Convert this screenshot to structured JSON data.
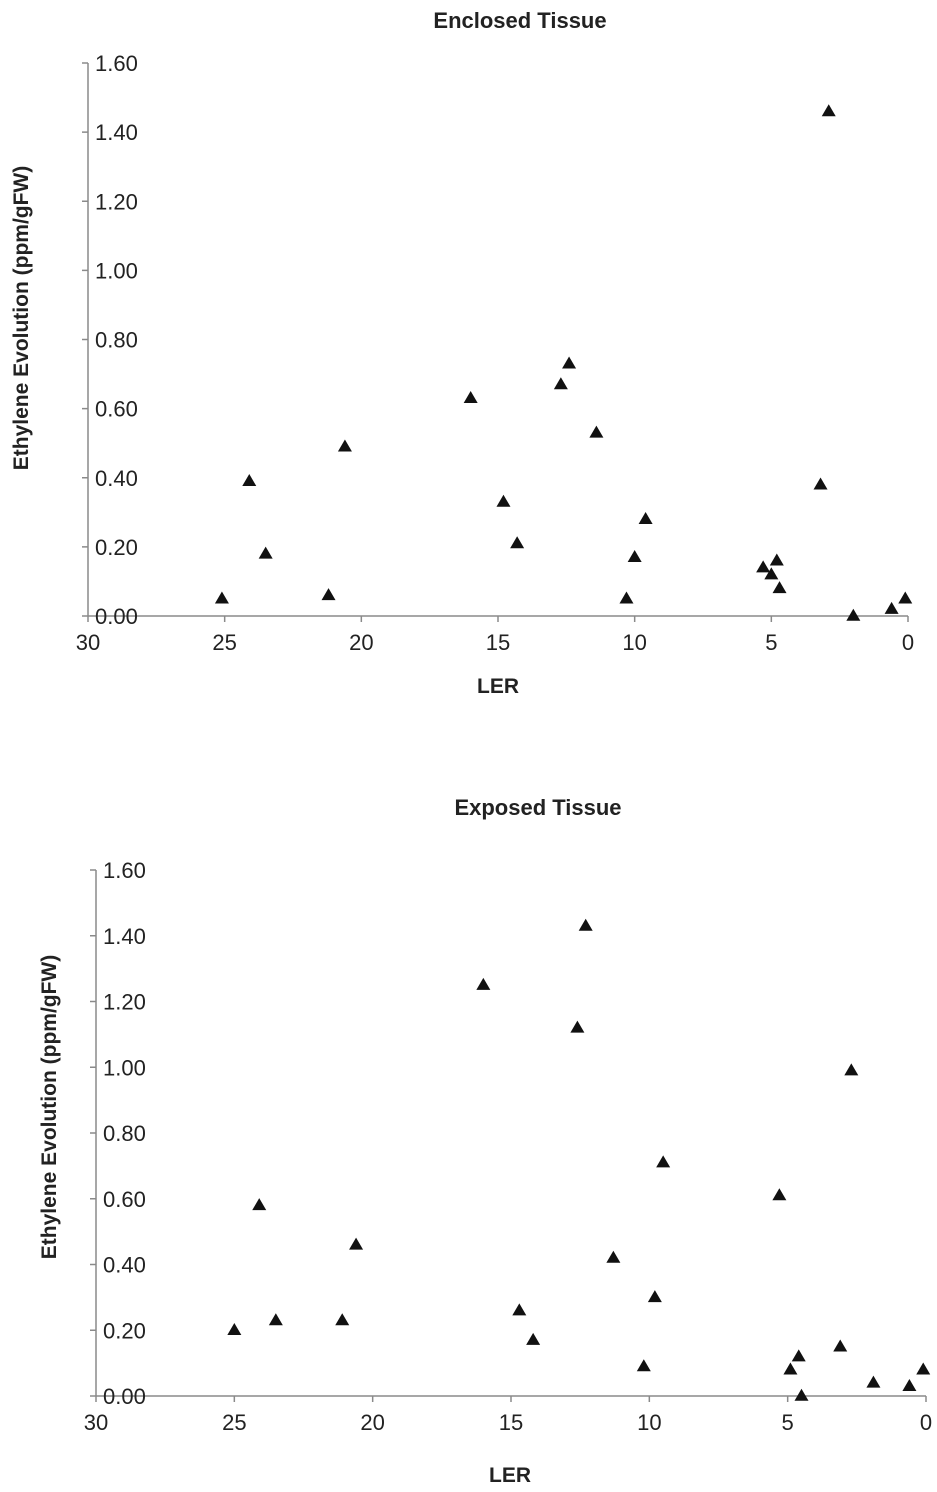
{
  "chart_data": [
    {
      "type": "scatter",
      "title": "Enclosed Tissue",
      "xlabel": "LER",
      "ylabel": "Ethylene Evolution (ppm/gFW)",
      "xlim": [
        30,
        0
      ],
      "ylim": [
        0,
        1.6
      ],
      "x_reversed": true,
      "xticks": [
        "30",
        "25",
        "20",
        "15",
        "10",
        "5",
        "0"
      ],
      "yticks": [
        "0.00",
        "0.20",
        "0.40",
        "0.60",
        "0.80",
        "1.00",
        "1.20",
        "1.40",
        "1.60"
      ],
      "grid": false,
      "marker": "triangle",
      "series": [
        {
          "x": [
            25.1,
            24.1,
            23.5,
            21.2,
            20.6,
            16.0,
            14.8,
            14.3,
            12.7,
            12.4,
            11.4,
            10.3,
            10.0,
            9.6,
            5.3,
            5.0,
            4.8,
            4.7,
            3.2,
            2.9,
            2.0,
            0.6,
            0.1
          ],
          "y": [
            0.05,
            0.39,
            0.18,
            0.06,
            0.49,
            0.63,
            0.33,
            0.21,
            0.67,
            0.73,
            0.53,
            0.05,
            0.17,
            0.28,
            0.14,
            0.12,
            0.16,
            0.08,
            0.38,
            1.46,
            0.0,
            0.02,
            0.05
          ]
        }
      ]
    },
    {
      "type": "scatter",
      "title": "Exposed Tissue",
      "xlabel": "LER",
      "ylabel": "Ethylene Evolution (ppm/gFW)",
      "xlim": [
        30,
        0
      ],
      "ylim": [
        0,
        1.6
      ],
      "x_reversed": true,
      "xticks": [
        "30",
        "25",
        "20",
        "15",
        "10",
        "5",
        "0"
      ],
      "yticks": [
        "0.00",
        "0.20",
        "0.40",
        "0.60",
        "0.80",
        "1.00",
        "1.20",
        "1.40",
        "1.60"
      ],
      "grid": false,
      "marker": "triangle",
      "series": [
        {
          "x": [
            25.0,
            24.1,
            23.5,
            21.1,
            20.6,
            16.0,
            14.7,
            14.2,
            12.6,
            12.3,
            11.3,
            10.2,
            9.8,
            9.5,
            5.3,
            4.9,
            4.6,
            4.5,
            3.1,
            2.7,
            1.9,
            0.6,
            0.1
          ],
          "y": [
            0.2,
            0.58,
            0.23,
            0.23,
            0.46,
            1.25,
            0.26,
            0.17,
            1.12,
            1.43,
            0.42,
            0.09,
            0.3,
            0.71,
            0.61,
            0.08,
            0.12,
            0.0,
            0.15,
            0.99,
            0.04,
            0.03,
            0.08
          ]
        }
      ]
    }
  ]
}
